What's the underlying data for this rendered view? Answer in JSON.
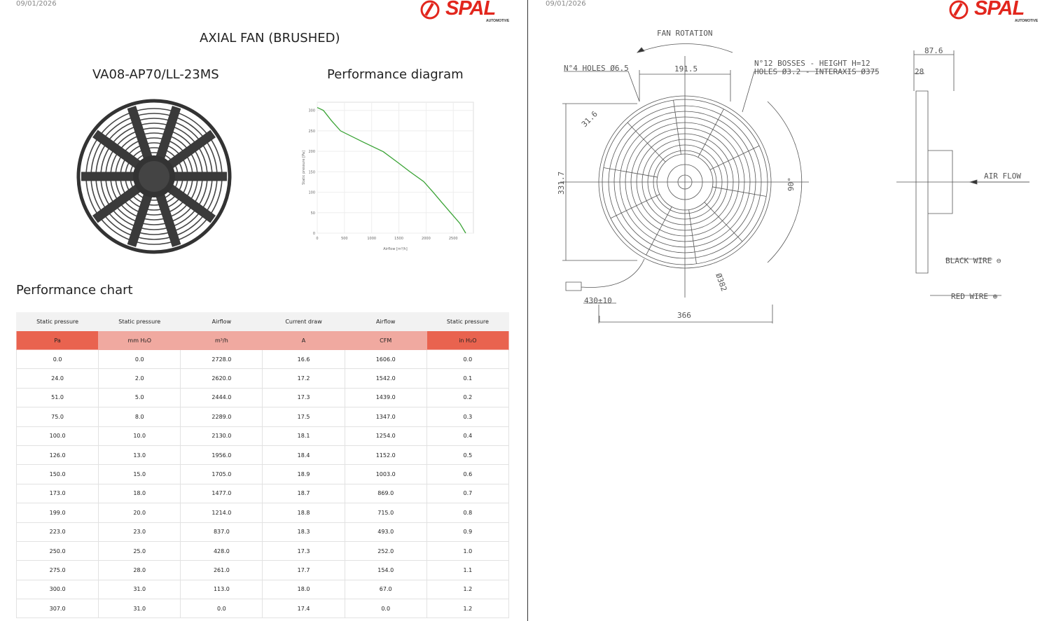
{
  "left_page": {
    "date": "09/01/2026",
    "logo": "SPAL",
    "logo_sub": "AUTOMOTIVE",
    "title": "AXIAL FAN (BRUSHED)",
    "model": "VA08-AP70/LL-23MS",
    "diagram_title": "Performance diagram",
    "chart_section_title": "Performance chart"
  },
  "right_page": {
    "date": "09/01/2026",
    "logo": "SPAL",
    "logo_sub": "AUTOMOTIVE"
  },
  "chart_data": {
    "type": "line",
    "xlabel": "Airflow [m³/h]",
    "ylabel": "Static pressure [Pa]",
    "xlim": [
      0,
      2870
    ],
    "ylim": [
      0,
      320
    ],
    "grid": true,
    "x_ticks": [
      "0",
      "500",
      "1000",
      "1500",
      "2000",
      "2500"
    ],
    "y_ticks": [
      "0",
      "50",
      "100",
      "150",
      "200",
      "250",
      "300"
    ],
    "color": "#3aa335",
    "series": [
      {
        "x": [
          2728,
          2620,
          2444,
          2289,
          2130,
          1956,
          1705,
          1477,
          1214,
          837,
          428,
          261,
          113,
          0
        ],
        "y": [
          0,
          24,
          51,
          75,
          100,
          126,
          150,
          173,
          199,
          223,
          250,
          275,
          300,
          307
        ]
      }
    ]
  },
  "table": {
    "headers": [
      "Static pressure",
      "Static pressure",
      "Airflow",
      "Current draw",
      "Airflow",
      "Static pressure"
    ],
    "units": [
      "Pa",
      "mm H₂O",
      "m³/h",
      "A",
      "CFM",
      "in H₂O"
    ],
    "rows": [
      [
        "0.0",
        "0.0",
        "2728.0",
        "16.6",
        "1606.0",
        "0.0"
      ],
      [
        "24.0",
        "2.0",
        "2620.0",
        "17.2",
        "1542.0",
        "0.1"
      ],
      [
        "51.0",
        "5.0",
        "2444.0",
        "17.3",
        "1439.0",
        "0.2"
      ],
      [
        "75.0",
        "8.0",
        "2289.0",
        "17.5",
        "1347.0",
        "0.3"
      ],
      [
        "100.0",
        "10.0",
        "2130.0",
        "18.1",
        "1254.0",
        "0.4"
      ],
      [
        "126.0",
        "13.0",
        "1956.0",
        "18.4",
        "1152.0",
        "0.5"
      ],
      [
        "150.0",
        "15.0",
        "1705.0",
        "18.9",
        "1003.0",
        "0.6"
      ],
      [
        "173.0",
        "18.0",
        "1477.0",
        "18.7",
        "869.0",
        "0.7"
      ],
      [
        "199.0",
        "20.0",
        "1214.0",
        "18.8",
        "715.0",
        "0.8"
      ],
      [
        "223.0",
        "23.0",
        "837.0",
        "18.3",
        "493.0",
        "0.9"
      ],
      [
        "250.0",
        "25.0",
        "428.0",
        "17.3",
        "252.0",
        "1.0"
      ],
      [
        "275.0",
        "28.0",
        "261.0",
        "17.7",
        "154.0",
        "1.1"
      ],
      [
        "300.0",
        "31.0",
        "113.0",
        "18.0",
        "67.0",
        "1.2"
      ],
      [
        "307.0",
        "31.0",
        "0.0",
        "17.4",
        "0.0",
        "1.2"
      ]
    ]
  },
  "drawing": {
    "fan_rotation": "FAN ROTATION",
    "holes4": "N°4 HOLES Ø6.5",
    "dim_191": "191.5",
    "bosses_1": "N°12 BOSSES - HEIGHT H=12",
    "bosses_2": "HOLES Ø3.2 - INTERAXIS Ø375",
    "dim_31": "31.6",
    "dim_331": "331.7",
    "dim_90": "90°",
    "dim_430": "430±10",
    "dim_382": "Ø382",
    "dim_366": "366",
    "dim_87": "87.6",
    "dim_28": "28",
    "air_flow": "AIR FLOW",
    "black_wire": "BLACK WIRE ⊖",
    "red_wire": "RED WIRE ⊕"
  }
}
